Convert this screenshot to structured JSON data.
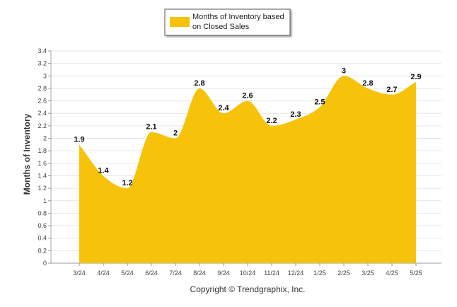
{
  "chart_data": {
    "type": "area",
    "categories": [
      "3/24",
      "4/24",
      "5/24",
      "6/24",
      "7/24",
      "8/24",
      "9/24",
      "10/24",
      "11/24",
      "12/24",
      "1/25",
      "2/25",
      "3/25",
      "4/25",
      "5/25"
    ],
    "series": [
      {
        "name": "Months of Inventory based on Closed Sales",
        "values": [
          1.9,
          1.4,
          1.2,
          2.1,
          2.0,
          2.8,
          2.4,
          2.6,
          2.2,
          2.3,
          2.5,
          3.0,
          2.8,
          2.7,
          2.9
        ],
        "value_labels": [
          "1.9",
          "1.4",
          "1.2",
          "2.1",
          "2",
          "2.8",
          "2.4",
          "2.6",
          "2.2",
          "2.3",
          "2.5",
          "3",
          "2.8",
          "2.7",
          "2.9"
        ],
        "color": "#F7C30A"
      }
    ],
    "ylabel": "Months of Inventory",
    "xlabel": "",
    "ylim": [
      0,
      3.4
    ],
    "y_ticks": [
      "0",
      "0.2",
      "0.4",
      "0.6",
      "0.8",
      "1",
      "1.2",
      "1.4",
      "1.6",
      "1.8",
      "2",
      "2.2",
      "2.4",
      "2.6",
      "2.8",
      "3",
      "3.2",
      "3.4"
    ],
    "grid": true,
    "grid_color": "#e6e6e6",
    "legend_placement": "top-center",
    "legend_lines": [
      "Months of Inventory based",
      "on Closed Sales"
    ]
  },
  "footer": {
    "copyright": "Copyright © Trendgraphix, Inc."
  }
}
